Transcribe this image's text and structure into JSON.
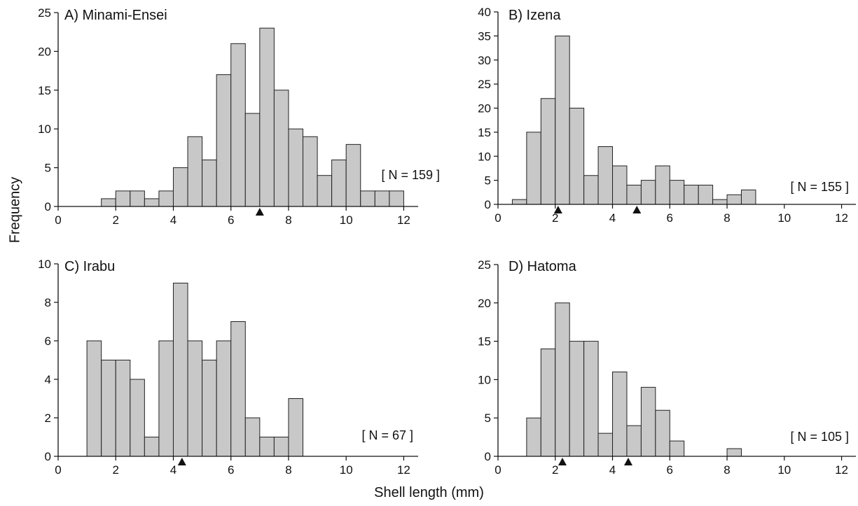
{
  "figure": {
    "ylabel": "Frequency",
    "xlabel": "Shell length (mm)"
  },
  "style": {
    "bar_fill": "#c8c8c8",
    "bar_stroke": "#222222",
    "axis_color": "#111111",
    "marker_color": "#111111"
  },
  "chart_data": [
    {
      "type": "bar",
      "title": "A) Minami-Ensei",
      "annotation": "[ N =  159 ]",
      "bin_width": 0.5,
      "bin_starts": [
        1.5,
        2,
        2.5,
        3,
        3.5,
        4,
        4.5,
        5,
        5.5,
        6,
        6.5,
        7,
        7.5,
        8,
        8.5,
        9,
        9.5,
        10,
        10.5,
        11,
        11.5
      ],
      "values": [
        1,
        2,
        2,
        1,
        2,
        5,
        9,
        6,
        17,
        21,
        12,
        23,
        15,
        10,
        9,
        4,
        6,
        8,
        2,
        2,
        2
      ],
      "xlim": [
        0,
        12.5
      ],
      "ylim": [
        0,
        25
      ],
      "xticks": [
        0,
        2,
        4,
        6,
        8,
        10,
        12
      ],
      "yticks": [
        0,
        5,
        10,
        15,
        20,
        25
      ],
      "markers": [
        7.0
      ]
    },
    {
      "type": "bar",
      "title": "B) Izena",
      "annotation": "[ N = 155 ]",
      "bin_width": 0.5,
      "bin_starts": [
        0.5,
        1,
        1.5,
        2,
        2.5,
        3,
        3.5,
        4,
        4.5,
        5,
        5.5,
        6,
        6.5,
        7,
        7.5,
        8,
        8.5
      ],
      "values": [
        1,
        15,
        22,
        35,
        20,
        6,
        12,
        8,
        4,
        5,
        8,
        5,
        4,
        4,
        1,
        2,
        3
      ],
      "xlim": [
        0,
        12.5
      ],
      "ylim": [
        0,
        40
      ],
      "xticks": [
        0,
        2,
        4,
        6,
        8,
        10,
        12
      ],
      "yticks": [
        0,
        5,
        10,
        15,
        20,
        25,
        30,
        35,
        40
      ],
      "markers": [
        2.1,
        4.85
      ]
    },
    {
      "type": "bar",
      "title": "C) Irabu",
      "annotation": "[ N = 67 ]",
      "bin_width": 0.5,
      "bin_starts": [
        1,
        1.5,
        2,
        2.5,
        3,
        3.5,
        4,
        4.5,
        5,
        5.5,
        6,
        6.5,
        7,
        7.5,
        8
      ],
      "values": [
        6,
        5,
        5,
        4,
        1,
        6,
        9,
        6,
        5,
        6,
        7,
        2,
        1,
        1,
        3
      ],
      "xlim": [
        0,
        12.5
      ],
      "ylim": [
        0,
        10
      ],
      "xticks": [
        0,
        2,
        4,
        6,
        8,
        10,
        12
      ],
      "yticks": [
        0,
        2,
        4,
        6,
        8,
        10
      ],
      "markers": [
        4.3
      ]
    },
    {
      "type": "bar",
      "title": "D) Hatoma",
      "annotation": "[ N = 105 ]",
      "bin_width": 0.5,
      "bin_starts": [
        1,
        1.5,
        2,
        2.5,
        3,
        3.5,
        4,
        4.5,
        5,
        5.5,
        6,
        8
      ],
      "values": [
        5,
        14,
        20,
        15,
        15,
        3,
        11,
        4,
        9,
        6,
        2,
        1
      ],
      "xlim": [
        0,
        12.5
      ],
      "ylim": [
        0,
        25
      ],
      "xticks": [
        0,
        2,
        4,
        6,
        8,
        10,
        12
      ],
      "yticks": [
        0,
        5,
        10,
        15,
        20,
        25
      ],
      "markers": [
        2.25,
        4.55
      ]
    }
  ]
}
